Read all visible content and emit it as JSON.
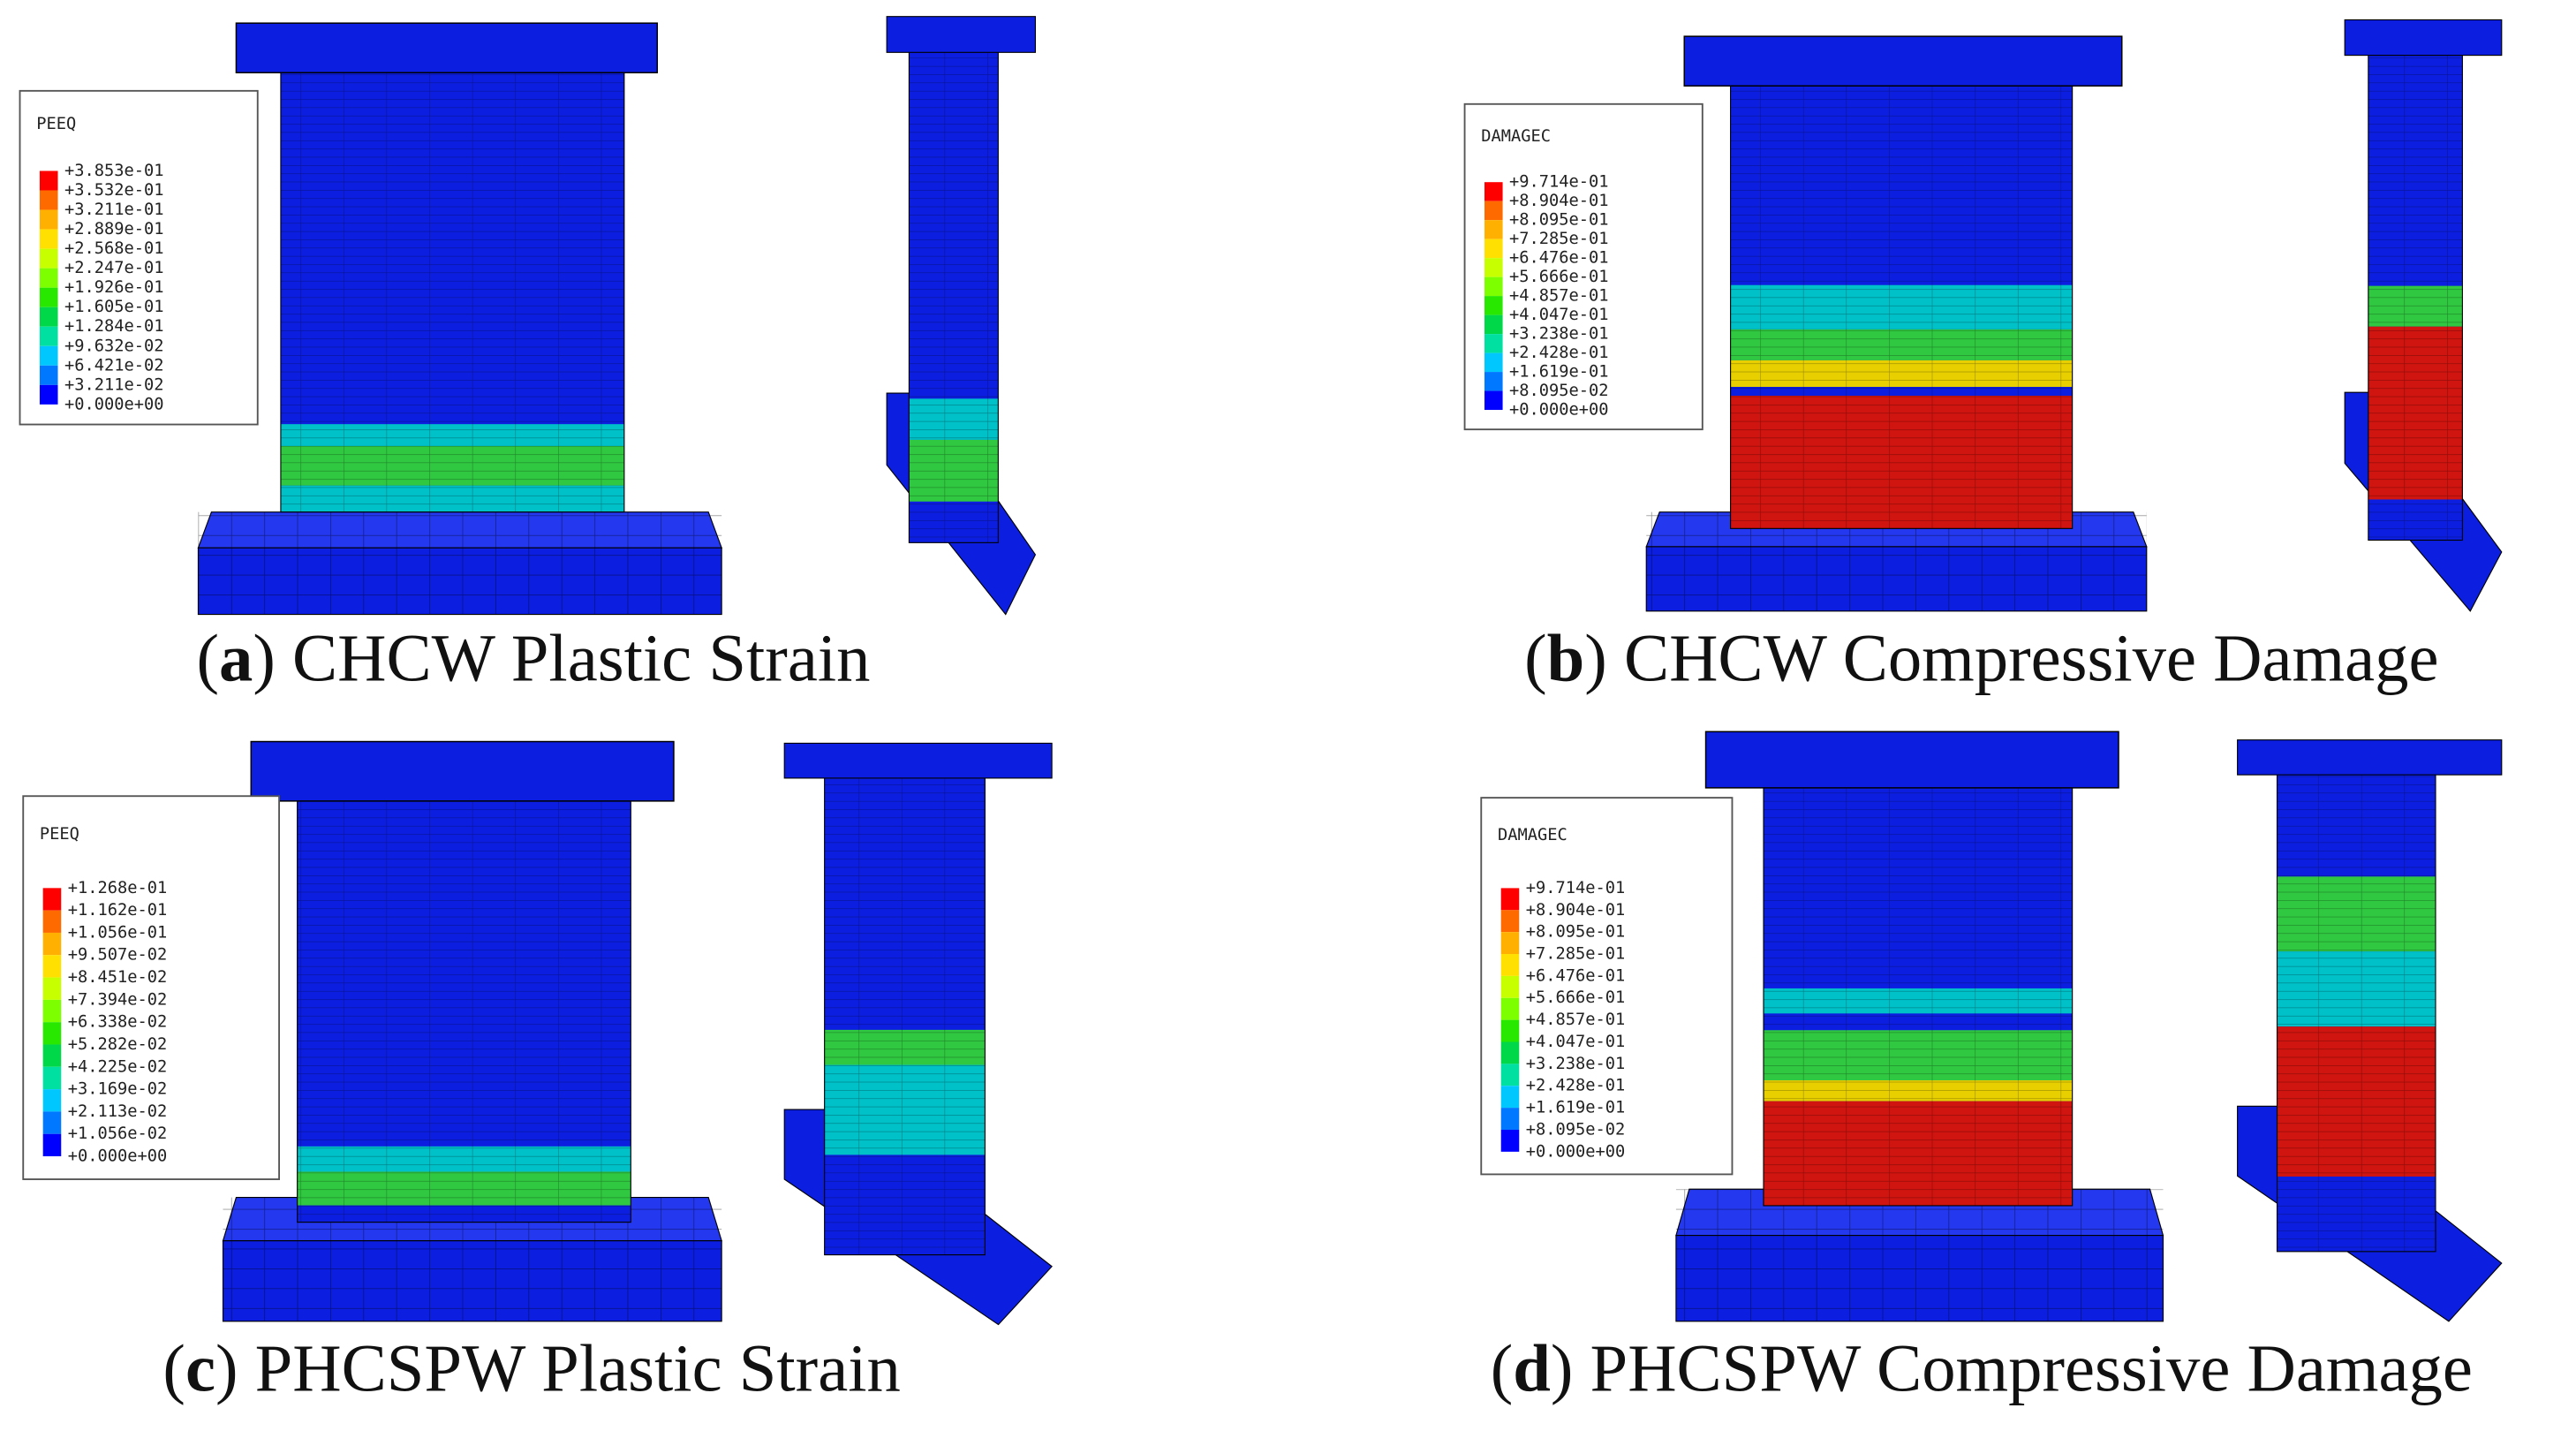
{
  "panels": [
    {
      "legend": {
        "title": "PEEQ",
        "values": [
          "+3.853e-01",
          "+3.532e-01",
          "+3.211e-01",
          "+2.889e-01",
          "+2.568e-01",
          "+2.247e-01",
          "+1.926e-01",
          "+1.605e-01",
          "+1.284e-01",
          "+9.632e-02",
          "+6.421e-02",
          "+3.211e-02",
          "+0.000e+00"
        ]
      },
      "caption": {
        "open": "(",
        "label": "a",
        "close": ")",
        "text": " CHCW Plastic Strain"
      }
    },
    {
      "legend": {
        "title": "DAMAGEC",
        "values": [
          "+9.714e-01",
          "+8.904e-01",
          "+8.095e-01",
          "+7.285e-01",
          "+6.476e-01",
          "+5.666e-01",
          "+4.857e-01",
          "+4.047e-01",
          "+3.238e-01",
          "+2.428e-01",
          "+1.619e-01",
          "+8.095e-02",
          "+0.000e+00"
        ]
      },
      "caption": {
        "open": "(",
        "label": "b",
        "close": ")",
        "text": " CHCW Compressive Damage"
      }
    },
    {
      "legend": {
        "title": "PEEQ",
        "values": [
          "+1.268e-01",
          "+1.162e-01",
          "+1.056e-01",
          "+9.507e-02",
          "+8.451e-02",
          "+7.394e-02",
          "+6.338e-02",
          "+5.282e-02",
          "+4.225e-02",
          "+3.169e-02",
          "+2.113e-02",
          "+1.056e-02",
          "+0.000e+00"
        ]
      },
      "caption": {
        "open": "(",
        "label": "c",
        "close": ")",
        "text": " PHCSPW Plastic Strain"
      }
    },
    {
      "legend": {
        "title": "DAMAGEC",
        "values": [
          "+9.714e-01",
          "+8.904e-01",
          "+8.095e-01",
          "+7.285e-01",
          "+6.476e-01",
          "+5.666e-01",
          "+4.857e-01",
          "+4.047e-01",
          "+3.238e-01",
          "+2.428e-01",
          "+1.619e-01",
          "+8.095e-02",
          "+0.000e+00"
        ]
      },
      "caption": {
        "open": "(",
        "label": "d",
        "close": ")",
        "text": " PHCSPW Compressive Damage"
      }
    }
  ]
}
